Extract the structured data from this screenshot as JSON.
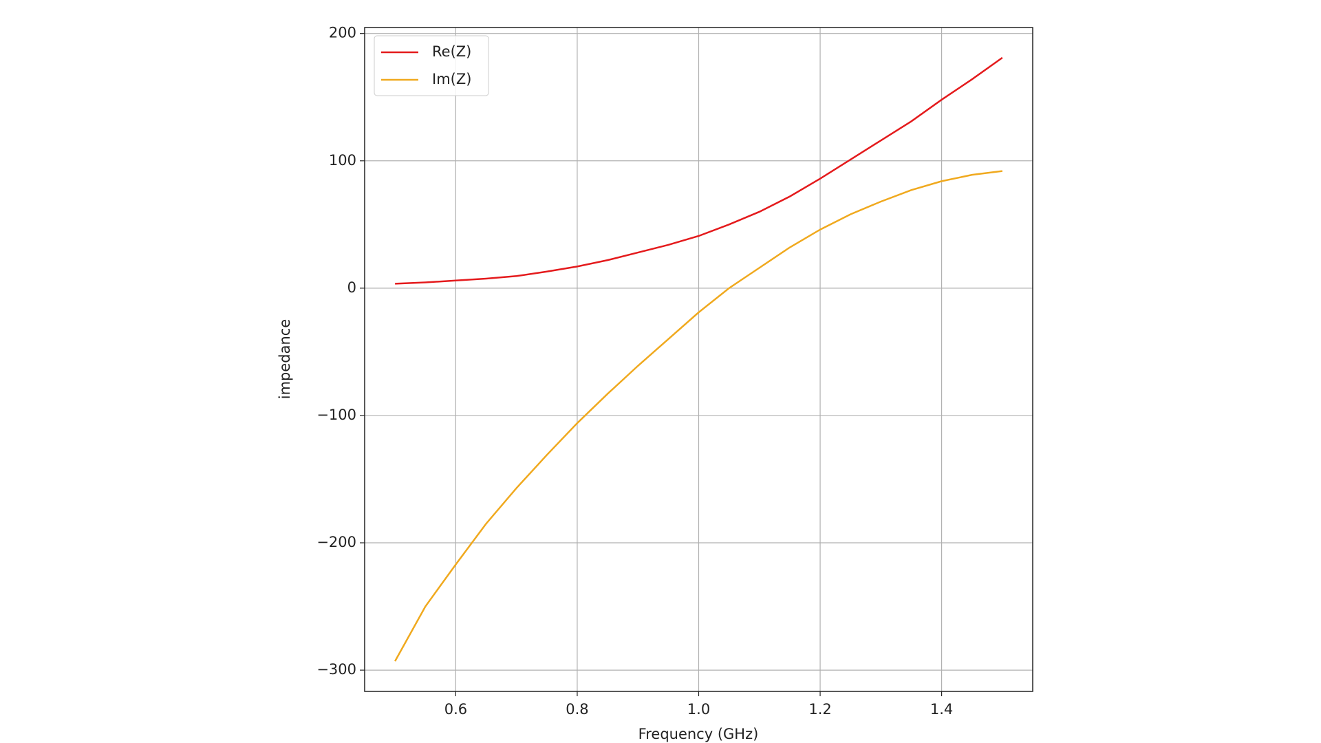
{
  "chart_data": {
    "type": "line",
    "x_label": "Frequency (GHz)",
    "y_label": "impedance",
    "x": [
      0.5,
      0.55,
      0.6,
      0.65,
      0.7,
      0.75,
      0.8,
      0.85,
      0.9,
      0.95,
      1.0,
      1.05,
      1.1,
      1.15,
      1.2,
      1.25,
      1.3,
      1.35,
      1.4,
      1.45,
      1.5
    ],
    "series": [
      {
        "name": "Re(Z)",
        "color": "#e41a1c",
        "values": [
          3.5,
          4.5,
          6,
          7.5,
          9.5,
          13,
          17,
          22,
          28,
          34,
          41,
          50,
          60,
          72,
          86,
          101,
          116,
          131,
          148,
          164,
          181
        ]
      },
      {
        "name": "Im(Z)",
        "color": "#f0a91e",
        "values": [
          -293,
          -250,
          -217,
          -185,
          -157,
          -131,
          -106,
          -83,
          -61,
          -40,
          -19,
          0,
          16,
          32,
          46,
          58,
          68,
          77,
          84,
          89,
          92
        ]
      }
    ],
    "xlim": [
      0.45,
      1.55
    ],
    "ylim": [
      -316.7,
      204.7
    ],
    "xticks": [
      0.6,
      0.8,
      {
        "value": 1.0,
        "label": "1.0"
      },
      1.2,
      1.4
    ],
    "yticks": [
      {
        "value": -300,
        "label": "−300"
      },
      {
        "value": -200,
        "label": "−200"
      },
      {
        "value": -100,
        "label": "−100"
      },
      0,
      100,
      200
    ],
    "grid": true,
    "legend": "upper left"
  }
}
